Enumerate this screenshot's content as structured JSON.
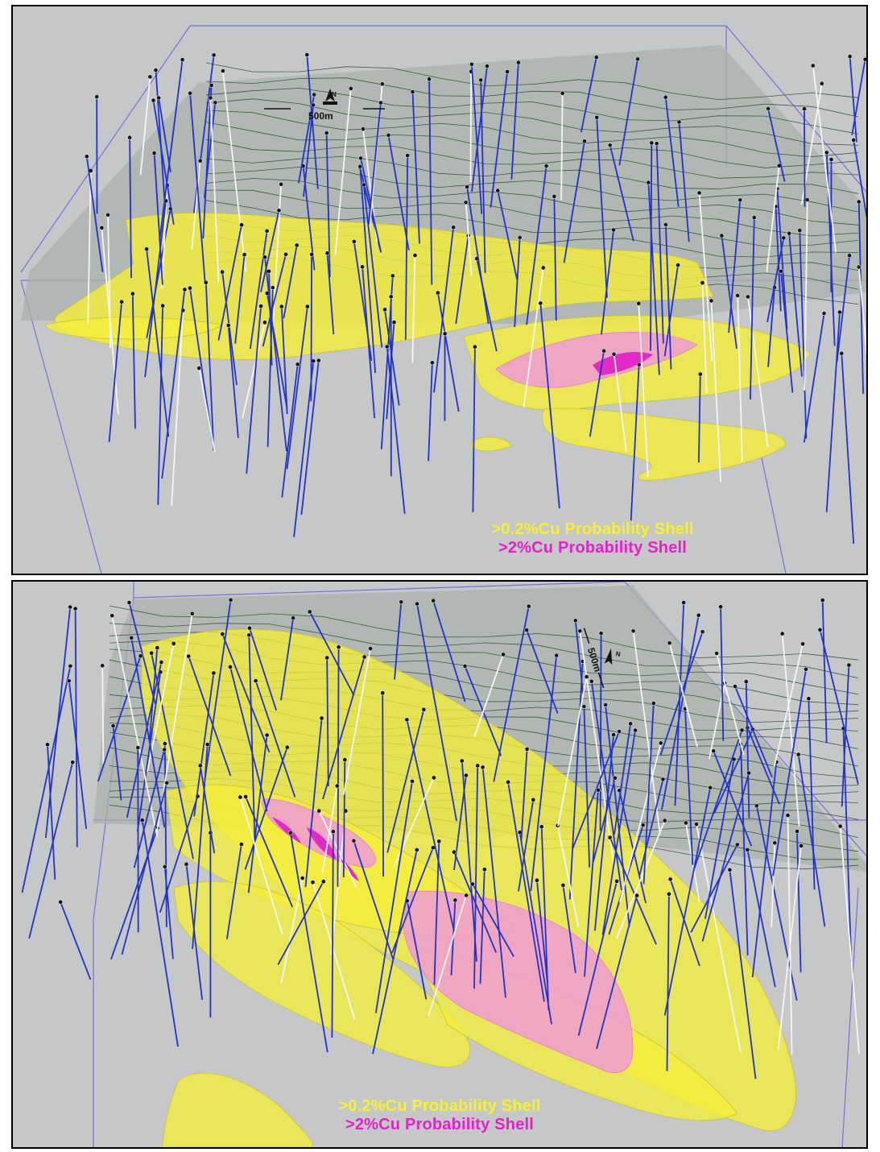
{
  "top_panel": {
    "scale_label": "500m",
    "legend": {
      "low_grade_label": ">0.2%Cu Probability Shell",
      "high_grade_label": ">2%Cu Probability Shell"
    }
  },
  "bottom_panel": {
    "scale_label": "500m",
    "legend": {
      "low_grade_label": ">0.2%Cu Probability Shell",
      "high_grade_label": ">2%Cu Probability Shell"
    }
  },
  "colors": {
    "background": "#c6c7c9",
    "topography_surface": "#a9b1ab",
    "contour_lines": "#3f5a44",
    "low_grade_shell": "#f3ee3a",
    "high_grade_shell": "#e22bc4",
    "high_grade_outline": "#f09ad6",
    "drillhole_blue": "#2233c8",
    "drillhole_white": "#f4f4f4",
    "bounding_box": "#7b6fd6"
  },
  "icons": {
    "north_arrow": "north-arrow-icon",
    "drillhole_collar": "collar-dot-icon"
  }
}
